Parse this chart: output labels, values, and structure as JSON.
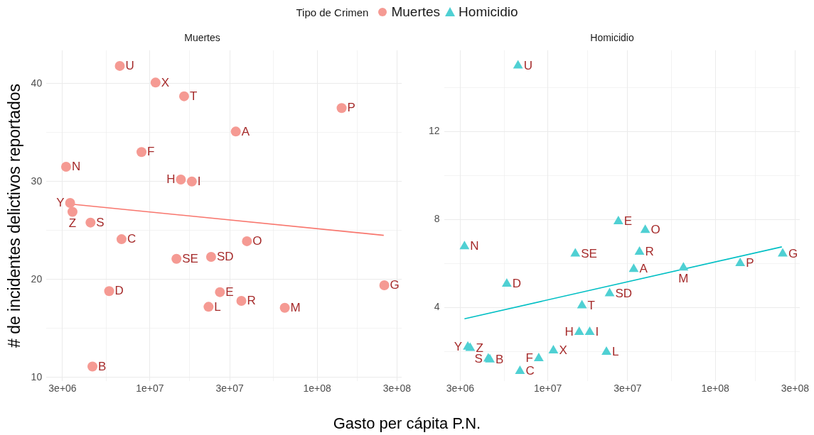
{
  "chart_data": [
    {
      "type": "scatter",
      "title": "Muertes",
      "xlabel": "Gasto per cápita P.N.",
      "ylabel": "# de incidentes delictivos reportados",
      "legend_title": "Tipo de Crimen",
      "legend": "top",
      "grid": true,
      "log": "x",
      "xlim": [
        2400000,
        320000000
      ],
      "xticks": [
        {
          "value": 3000000,
          "label": "3e+06"
        },
        {
          "value": 5480000,
          "label": null
        },
        {
          "value": 10000000,
          "label": "1e+07"
        },
        {
          "value": 17300000,
          "label": null
        },
        {
          "value": 30000000,
          "label": "3e+07"
        },
        {
          "value": 54800000,
          "label": null
        },
        {
          "value": 100000000,
          "label": "1e+08"
        },
        {
          "value": 173000000,
          "label": null
        },
        {
          "value": 300000000,
          "label": "3e+08"
        }
      ],
      "ylim": [
        9.6,
        43.4
      ],
      "yticks": [
        {
          "value": 10,
          "label": "10"
        },
        {
          "value": 15,
          "label": null
        },
        {
          "value": 20,
          "label": "20"
        },
        {
          "value": 25,
          "label": null
        },
        {
          "value": 30,
          "label": "30"
        },
        {
          "value": 35,
          "label": null
        },
        {
          "value": 40,
          "label": "40"
        }
      ],
      "series": [
        {
          "name": "Muertes",
          "color": "#f59a93",
          "marker": "circle",
          "x": [
            6600000,
            10800000,
            16000000,
            140000000,
            32600000,
            8900000,
            3150000,
            15300000,
            17800000,
            3330000,
            3440000,
            4410000,
            6760000,
            38000000,
            14400000,
            23200000,
            5700000,
            252000000,
            26200000,
            35200000,
            22400000,
            64000000,
            4530000
          ],
          "values": [
            41.8,
            40.1,
            38.7,
            37.5,
            35.1,
            33.0,
            31.5,
            30.2,
            30.0,
            27.8,
            26.9,
            25.8,
            24.1,
            23.9,
            22.1,
            22.3,
            18.8,
            19.4,
            18.7,
            17.8,
            17.2,
            17.1,
            11.1
          ]
        },
        {
          "type": "line",
          "color": "#f8766d",
          "marker": "none",
          "x": [
            3330000,
            250000000
          ],
          "values": [
            27.7,
            24.5
          ]
        }
      ],
      "annotations": [
        {
          "text": "U",
          "x": 6600000,
          "y": 41.8
        },
        {
          "text": "X",
          "x": 10800000,
          "y": 40.1
        },
        {
          "text": "T",
          "x": 16000000,
          "y": 38.7
        },
        {
          "text": "P",
          "x": 140000000,
          "y": 37.5
        },
        {
          "text": "A",
          "x": 32600000,
          "y": 35.1
        },
        {
          "text": "F",
          "x": 8900000,
          "y": 33.0
        },
        {
          "text": "N",
          "x": 3150000,
          "y": 31.5
        },
        {
          "text": "H",
          "x": 15300000,
          "y": 30.2
        },
        {
          "text": "I",
          "x": 17800000,
          "y": 30.0
        },
        {
          "text": "Y",
          "x": 3330000,
          "y": 27.8
        },
        {
          "text": "Z",
          "x": 3440000,
          "y": 26.9
        },
        {
          "text": "S",
          "x": 4410000,
          "y": 25.8
        },
        {
          "text": "C",
          "x": 6760000,
          "y": 24.1
        },
        {
          "text": "O",
          "x": 38000000,
          "y": 23.9
        },
        {
          "text": "SE",
          "x": 14400000,
          "y": 22.1
        },
        {
          "text": "SD",
          "x": 23200000,
          "y": 22.3
        },
        {
          "text": "D",
          "x": 5700000,
          "y": 18.8
        },
        {
          "text": "G",
          "x": 252000000,
          "y": 19.4
        },
        {
          "text": "E",
          "x": 26200000,
          "y": 18.7
        },
        {
          "text": "R",
          "x": 35200000,
          "y": 17.8
        },
        {
          "text": "L",
          "x": 22400000,
          "y": 17.2
        },
        {
          "text": "M",
          "x": 64000000,
          "y": 17.1
        },
        {
          "text": "B",
          "x": 4530000,
          "y": 11.1
        }
      ]
    },
    {
      "type": "scatter",
      "title": "Homicidio",
      "legend": "top",
      "grid": true,
      "log": "x",
      "xlim": [
        2400000,
        320000000
      ],
      "xticks": [
        {
          "value": 3000000,
          "label": "3e+06"
        },
        {
          "value": 5480000,
          "label": null
        },
        {
          "value": 10000000,
          "label": "1e+07"
        },
        {
          "value": 17300000,
          "label": null
        },
        {
          "value": 30000000,
          "label": "3e+07"
        },
        {
          "value": 54800000,
          "label": null
        },
        {
          "value": 100000000,
          "label": "1e+08"
        },
        {
          "value": 173000000,
          "label": null
        },
        {
          "value": 300000000,
          "label": "3e+08"
        }
      ],
      "ylim": [
        0.65,
        15.7
      ],
      "yticks": [
        {
          "value": 2,
          "label": null
        },
        {
          "value": 4,
          "label": "4"
        },
        {
          "value": 6,
          "label": null
        },
        {
          "value": 8,
          "label": "8"
        },
        {
          "value": 10,
          "label": null
        },
        {
          "value": 12,
          "label": "12"
        },
        {
          "value": 14,
          "label": null
        }
      ],
      "series": [
        {
          "name": "Homicidio",
          "color": "#4fd0d3",
          "marker": "triangle",
          "x": [
            6640000,
            26400000,
            38200000,
            3180000,
            14600000,
            35300000,
            32600000,
            64600000,
            141000000,
            253000000,
            5690000,
            23400000,
            16000000,
            15400000,
            17800000,
            22400000,
            3330000,
            3440000,
            4410000,
            4510000,
            8830000,
            10800000,
            6820000
          ],
          "values": [
            15.0,
            7.92,
            7.52,
            6.78,
            6.45,
            6.53,
            5.75,
            5.81,
            6.01,
            6.45,
            5.08,
            4.64,
            4.09,
            2.88,
            2.88,
            1.98,
            2.21,
            2.16,
            1.67,
            1.63,
            1.69,
            2.04,
            1.11
          ]
        },
        {
          "type": "line",
          "color": "#00bfc4",
          "marker": "none",
          "x": [
            3180000,
            250000000
          ],
          "values": [
            3.49,
            6.76
          ]
        }
      ],
      "annotations": [
        {
          "text": "U",
          "x": 6640000,
          "y": 15.0
        },
        {
          "text": "E",
          "x": 26400000,
          "y": 7.92
        },
        {
          "text": "O",
          "x": 38200000,
          "y": 7.52
        },
        {
          "text": "N",
          "x": 3180000,
          "y": 6.78
        },
        {
          "text": "SE",
          "x": 14600000,
          "y": 6.45
        },
        {
          "text": "R",
          "x": 35300000,
          "y": 6.53
        },
        {
          "text": "A",
          "x": 32600000,
          "y": 5.75
        },
        {
          "text": "M",
          "x": 64600000,
          "y": 5.81
        },
        {
          "text": "P",
          "x": 141000000,
          "y": 6.01
        },
        {
          "text": "G",
          "x": 253000000,
          "y": 6.45
        },
        {
          "text": "D",
          "x": 5690000,
          "y": 5.08
        },
        {
          "text": "SD",
          "x": 23400000,
          "y": 4.64
        },
        {
          "text": "T",
          "x": 16000000,
          "y": 4.09
        },
        {
          "text": "H",
          "x": 15400000,
          "y": 2.88
        },
        {
          "text": "I",
          "x": 17800000,
          "y": 2.88
        },
        {
          "text": "L",
          "x": 22400000,
          "y": 1.98
        },
        {
          "text": "Y",
          "x": 3330000,
          "y": 2.21
        },
        {
          "text": "Z",
          "x": 3440000,
          "y": 2.16
        },
        {
          "text": "S",
          "x": 4410000,
          "y": 1.67
        },
        {
          "text": "B",
          "x": 4510000,
          "y": 1.63
        },
        {
          "text": "F",
          "x": 8830000,
          "y": 1.69
        },
        {
          "text": "X",
          "x": 10800000,
          "y": 2.04
        },
        {
          "text": "C",
          "x": 6820000,
          "y": 1.11
        }
      ]
    }
  ]
}
